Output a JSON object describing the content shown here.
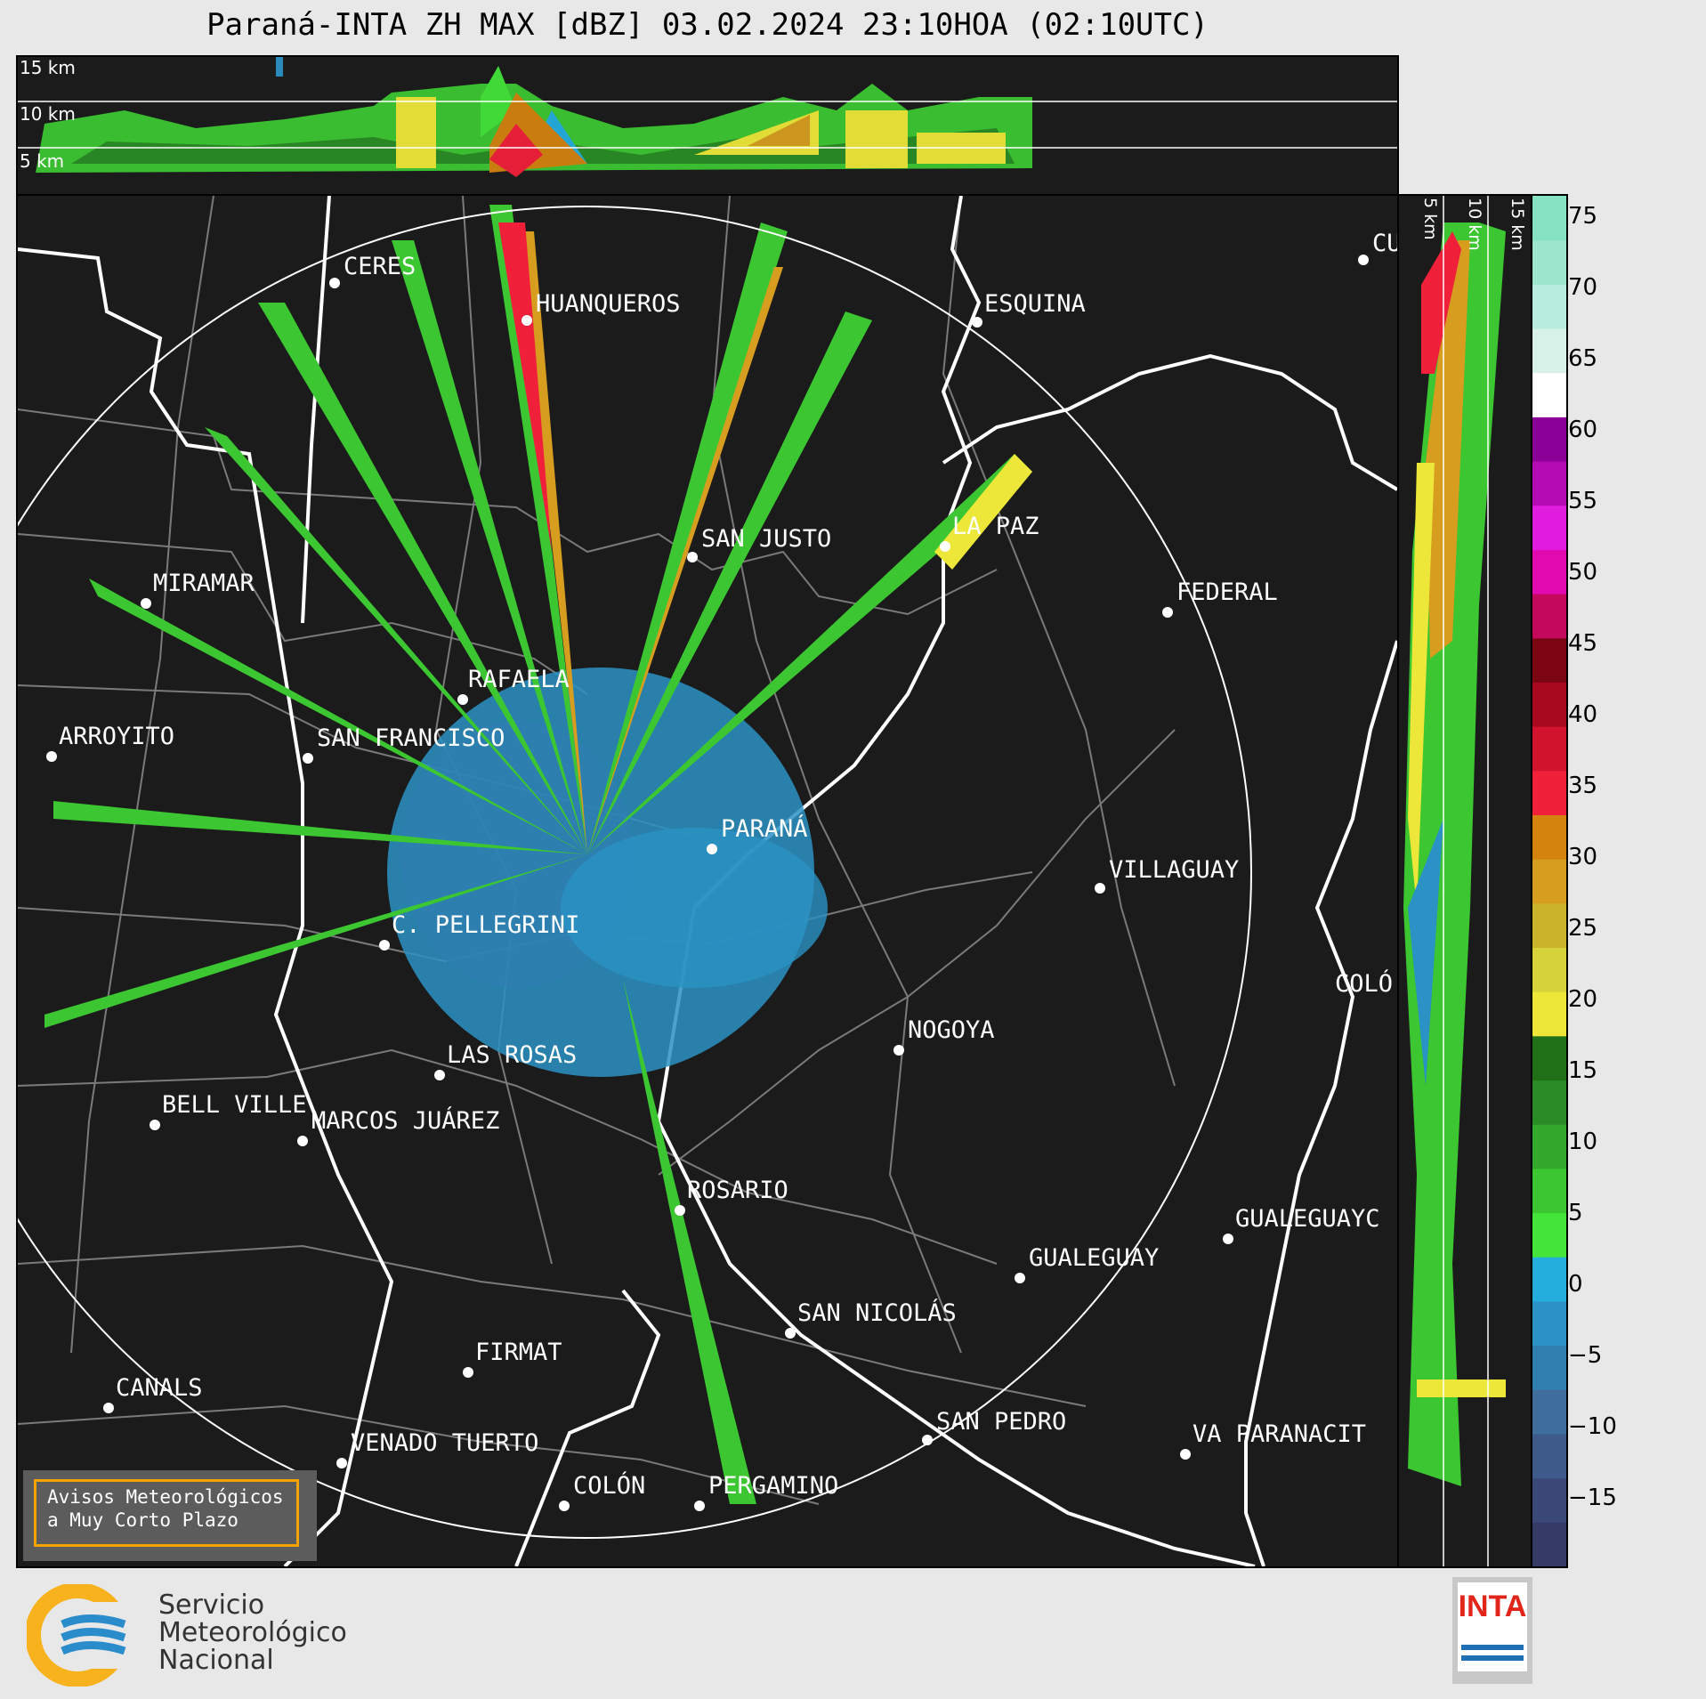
{
  "title": "Paraná-INTA ZH MAX [dBZ] 03.02.2024 23:10HOA (02:10UTC)",
  "top_panel": {
    "altitude_labels": [
      "15 km",
      "10 km",
      "5 km"
    ]
  },
  "side_panel": {
    "altitude_labels": [
      "5 km",
      "10 km",
      "15 km"
    ]
  },
  "colorbar": {
    "ticks": [
      "75",
      "70",
      "65",
      "60",
      "55",
      "50",
      "45",
      "40",
      "35",
      "30",
      "25",
      "20",
      "15",
      "10",
      "5",
      "0",
      "−5",
      "−10",
      "−15"
    ],
    "colors": [
      "#353a66",
      "#3a4878",
      "#3d5a8a",
      "#3f6d9c",
      "#2f7fb0",
      "#2a92c4",
      "#24aede",
      "#44e43a",
      "#3cc632",
      "#33a82c",
      "#2a8c25",
      "#207018",
      "#ece738",
      "#d6d23a",
      "#c9b32b",
      "#d79d1f",
      "#d4830f",
      "#f0203a",
      "#d2132d",
      "#a8091e",
      "#7c0514",
      "#c4095d",
      "#e00ab0",
      "#e01ddf",
      "#b40bb4",
      "#8a0096",
      "#ffffff",
      "#d8f1e8",
      "#b8ecdc",
      "#9be6cd",
      "#85e3c3"
    ]
  },
  "cities": [
    {
      "name": "CERES"
    },
    {
      "name": "HUANQUEROS"
    },
    {
      "name": "ESQUINA"
    },
    {
      "name": "CU"
    },
    {
      "name": "SAN JUSTO"
    },
    {
      "name": "LA PAZ"
    },
    {
      "name": "MIRAMAR"
    },
    {
      "name": "FEDERAL"
    },
    {
      "name": "RAFAELA"
    },
    {
      "name": "ARROYITO"
    },
    {
      "name": "SAN FRANCISCO"
    },
    {
      "name": "PARANÁ"
    },
    {
      "name": "VILLAGUAY"
    },
    {
      "name": "C. PELLEGRINI"
    },
    {
      "name": "COLÓ"
    },
    {
      "name": "NOGOYA"
    },
    {
      "name": "LAS ROSAS"
    },
    {
      "name": "BELL VILLE"
    },
    {
      "name": "MARCOS JUÁREZ"
    },
    {
      "name": "ROSARIO"
    },
    {
      "name": "GUALEGUAYC"
    },
    {
      "name": "GUALEGUAY"
    },
    {
      "name": "SAN NICOLÁS"
    },
    {
      "name": "FIRMAT"
    },
    {
      "name": "CANALS"
    },
    {
      "name": "SAN PEDRO"
    },
    {
      "name": "VENADO TUERTO"
    },
    {
      "name": "VA PARANACIT"
    },
    {
      "name": "COLÓN"
    },
    {
      "name": "PERGAMINO"
    }
  ],
  "notice": {
    "line1": "Avisos Meteorológicos",
    "line2": "a Muy Corto Plazo"
  },
  "smn": {
    "line1": "Servicio",
    "line2": "Meteorológico",
    "line3": "Nacional"
  },
  "inta": {
    "text": "INTA"
  }
}
